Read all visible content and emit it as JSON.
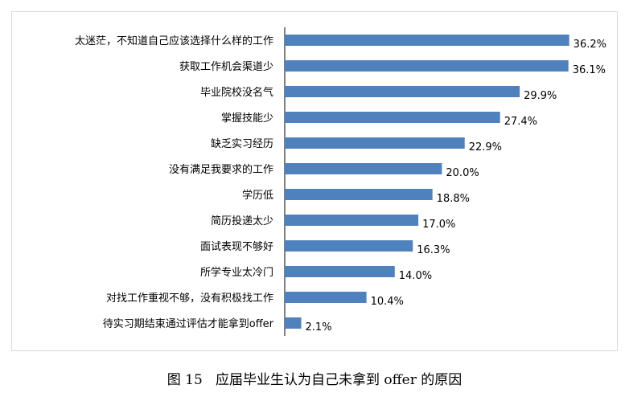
{
  "caption": "图 15   应届毕业生认为自己未拿到 offer 的原因",
  "colors": {
    "bar": "#4f81bd",
    "axis": "#000000"
  },
  "chart_data": {
    "type": "bar",
    "orientation": "horizontal",
    "categories": [
      "太迷茫，不知道自己应该选择什么样的工作",
      "获取工作机会渠道少",
      "毕业院校没名气",
      "掌握技能少",
      "缺乏实习经历",
      "没有满足我要求的工作",
      "学历低",
      "简历投递太少",
      "面试表现不够好",
      "所学专业太冷门",
      "对找工作重视不够，没有积极找工作",
      "待实习期结束通过评估才能拿到offer"
    ],
    "values": [
      36.2,
      36.1,
      29.9,
      27.4,
      22.9,
      20.0,
      18.8,
      17.0,
      16.3,
      14.0,
      10.4,
      2.1
    ],
    "value_labels": [
      "36.2%",
      "36.1%",
      "29.9%",
      "27.4%",
      "22.9%",
      "20.0%",
      "18.8%",
      "17.0%",
      "16.3%",
      "14.0%",
      "10.4%",
      "2.1%"
    ],
    "xlim": [
      0,
      37
    ],
    "grid": false,
    "legend": "none"
  }
}
